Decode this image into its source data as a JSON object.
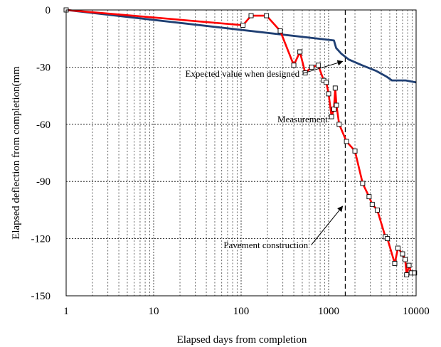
{
  "chart_data": {
    "type": "line",
    "title": "",
    "xlabel": "Elapsed days from completion",
    "ylabel": "Elapsed deflection from completion(mm",
    "x_scale": "log",
    "xlim": [
      1,
      10000
    ],
    "ylim": [
      -150,
      0
    ],
    "x_ticks": [
      1,
      10,
      100,
      1000,
      10000
    ],
    "x_tick_labels": [
      "1",
      "10",
      "100",
      "1000",
      "10000"
    ],
    "y_ticks": [
      0,
      -30,
      -60,
      -90,
      -120,
      -150
    ],
    "y_tick_labels": [
      "0",
      "-30",
      "-60",
      "-90",
      "-120",
      "-150"
    ],
    "grid": true,
    "legend": "none",
    "series": [
      {
        "name": "Measurement",
        "color": "#ff0000",
        "marker": "square",
        "points": [
          [
            1,
            0
          ],
          [
            105,
            -8
          ],
          [
            130,
            -3
          ],
          [
            195,
            -3
          ],
          [
            280,
            -11
          ],
          [
            400,
            -29
          ],
          [
            470,
            -22
          ],
          [
            540,
            -33
          ],
          [
            640,
            -30
          ],
          [
            760,
            -29
          ],
          [
            880,
            -37
          ],
          [
            940,
            -38
          ],
          [
            1000,
            -44
          ],
          [
            1080,
            -56
          ],
          [
            1150,
            -52
          ],
          [
            1190,
            -41
          ],
          [
            1230,
            -50
          ],
          [
            1320,
            -60
          ],
          [
            1600,
            -69
          ],
          [
            2000,
            -74
          ],
          [
            2450,
            -91
          ],
          [
            2900,
            -98
          ],
          [
            3150,
            -102
          ],
          [
            3600,
            -105
          ],
          [
            4450,
            -119
          ],
          [
            4700,
            -120
          ],
          [
            5700,
            -133
          ],
          [
            6200,
            -125
          ],
          [
            7000,
            -128
          ],
          [
            7500,
            -131
          ],
          [
            7800,
            -139
          ],
          [
            8300,
            -134
          ],
          [
            8800,
            -138
          ],
          [
            9600,
            -138
          ]
        ]
      },
      {
        "name": "Expected value when designed",
        "color": "#1f3f73",
        "marker": "none",
        "points": [
          [
            1,
            0
          ],
          [
            1150,
            -16
          ],
          [
            1220,
            -20
          ],
          [
            1400,
            -23
          ],
          [
            1700,
            -26
          ],
          [
            2400,
            -29
          ],
          [
            3500,
            -32
          ],
          [
            4600,
            -35
          ],
          [
            5300,
            -37
          ],
          [
            6100,
            -37
          ],
          [
            7600,
            -37
          ],
          [
            10000,
            -38
          ]
        ]
      }
    ],
    "vertical_line": {
      "x": 1550,
      "style": "dashed",
      "label": "Pavement construction"
    },
    "annotations": [
      {
        "text": "Expected value when designed",
        "x": 23,
        "y": -35,
        "arrow_to": [
          1500,
          -27
        ]
      },
      {
        "text": "Measurement",
        "x": 260,
        "y": -59
      },
      {
        "text": "Pavement construction",
        "x": 63,
        "y": -125,
        "arrow_to": [
          1500,
          -103
        ]
      }
    ]
  }
}
